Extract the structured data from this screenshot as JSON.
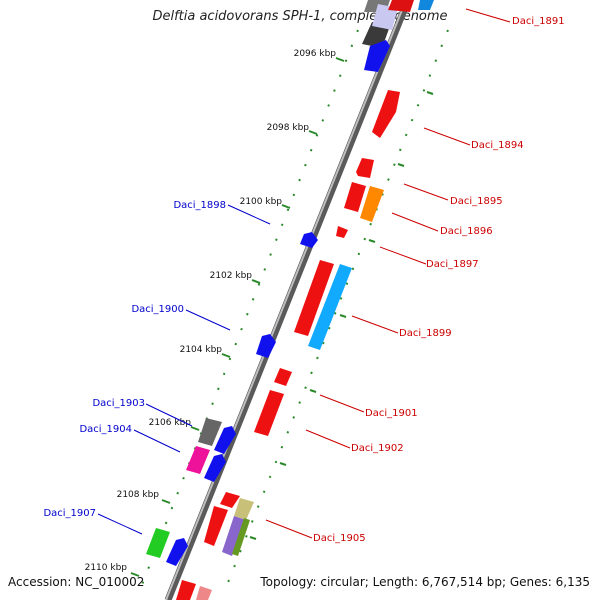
{
  "title": "Delftia acidovorans SPH-1, complete genome",
  "footer": {
    "accession": "Accession: NC_010002",
    "topology": "Topology: circular; Length: 6,767,514 bp; Genes: 6,135"
  },
  "ticks": [
    "2096 kbp",
    "2098 kbp",
    "2100 kbp",
    "2102 kbp",
    "2104 kbp",
    "2106 kbp",
    "2108 kbp",
    "2110 kbp"
  ],
  "genes_forward": [
    "Daci_1891",
    "Daci_1894",
    "Daci_1895",
    "Daci_1896",
    "Daci_1897",
    "Daci_1899",
    "Daci_1901",
    "Daci_1902",
    "Daci_1905"
  ],
  "genes_reverse": [
    "Daci_1898",
    "Daci_1900",
    "Daci_1903",
    "Daci_1904",
    "Daci_1907"
  ],
  "colors": {
    "forward_label": "#cc0000",
    "reverse_label": "#0000cc",
    "backbone": "#888888",
    "tick": "#2a8a2a"
  }
}
